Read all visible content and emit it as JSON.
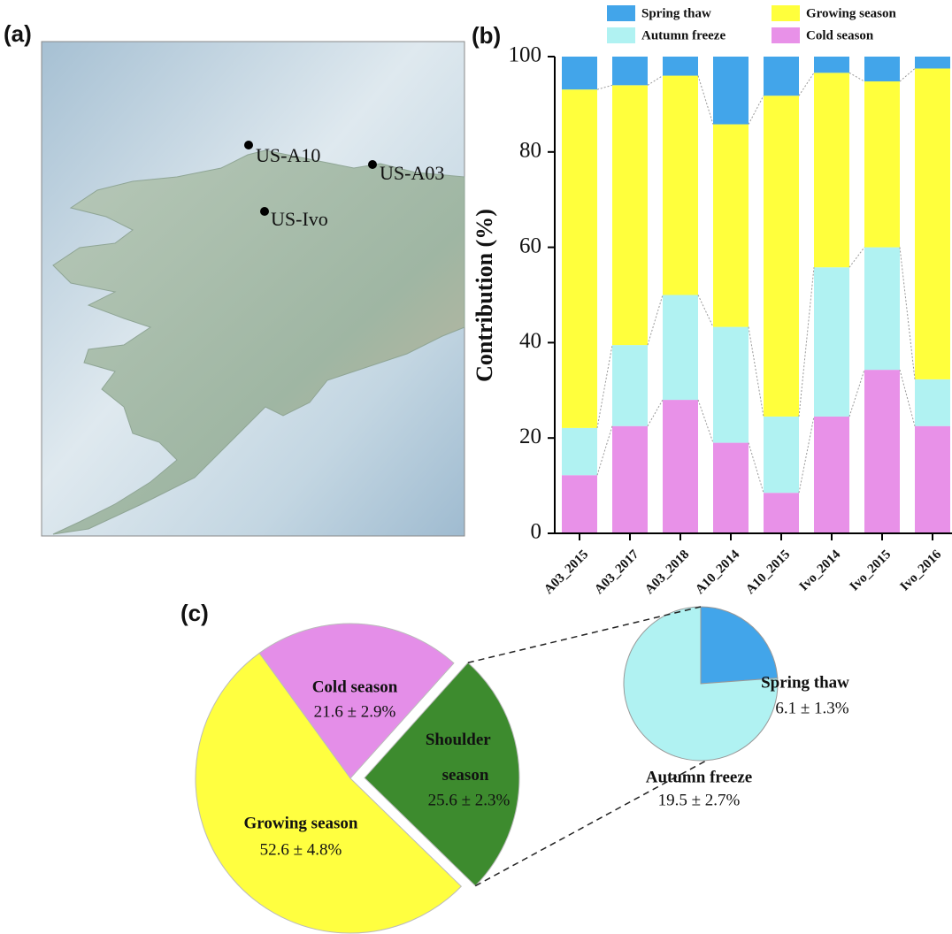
{
  "map": {
    "panel_label": "(a)",
    "sites": [
      "US-A10",
      "US-A03",
      "US-Ivo"
    ]
  },
  "chart_data": [
    {
      "type": "bar",
      "panel_label": "(b)",
      "y_label": "Contribution (%)",
      "stacked": true,
      "categories": [
        "A03_2015",
        "A03_2017",
        "A03_2018",
        "A10_2014",
        "A10_2015",
        "Ivo_2014",
        "Ivo_2015",
        "Ivo_2016"
      ],
      "series": [
        {
          "name": "Cold season",
          "color": "#e891e8",
          "values": [
            12.2,
            22.5,
            28,
            19,
            8.5,
            24.5,
            34.3,
            22.5
          ]
        },
        {
          "name": "Autumn freeze",
          "color": "#b0f2f2",
          "values": [
            9.9,
            17,
            22,
            24.3,
            16,
            31.3,
            25.7,
            9.8
          ]
        },
        {
          "name": "Growing season",
          "color": "#ffff3c",
          "values": [
            71,
            54.5,
            46,
            42.5,
            67.3,
            40.8,
            34.8,
            65.2
          ]
        },
        {
          "name": "Spring thaw",
          "color": "#42a5ea",
          "values": [
            6.9,
            6,
            4,
            14.2,
            8.2,
            3.4,
            5.2,
            2.5
          ]
        }
      ],
      "ylim": [
        0,
        100
      ],
      "yticks": [
        0,
        20,
        40,
        60,
        80,
        100
      ]
    },
    {
      "type": "pie",
      "panel_label": "(c)",
      "labels": [
        "Cold season",
        "Shoulder season",
        "Growing season"
      ],
      "values": [
        21.6,
        25.6,
        52.6
      ],
      "value_labels": [
        "21.6 ± 2.9%",
        "25.6 ± 2.3%",
        "52.6 ± 4.8%"
      ],
      "colors": [
        "#e48ee8",
        "#3d8b2e",
        "#ffff40"
      ],
      "exploded": [
        false,
        true,
        false
      ],
      "sub_pie": {
        "labels": [
          "Spring thaw",
          "Autumn freeze"
        ],
        "values": [
          6.1,
          19.5
        ],
        "value_labels": [
          "6.1 ± 1.3%",
          "19.5 ± 2.7%"
        ],
        "colors": [
          "#42a5ea",
          "#b0f2f2"
        ]
      }
    }
  ]
}
